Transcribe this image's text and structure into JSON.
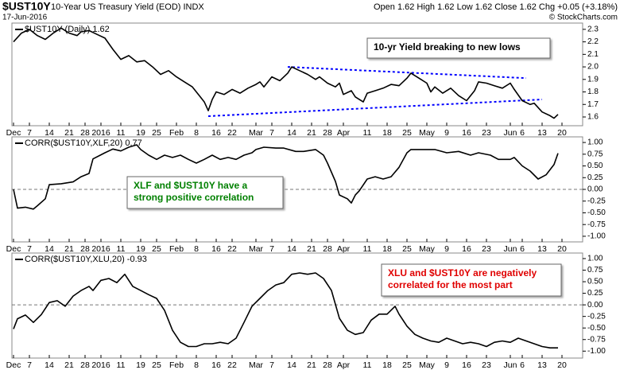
{
  "header": {
    "symbol": "$UST10Y",
    "name": "10-Year US Treasury Yield (EOD) INDX",
    "date": "17-Jun-2016",
    "quote": "Open 1.62  High 1.62  Low 1.62  Close 1.62  Chg +0.05 (+3.18%)",
    "watermark": "© StockCharts.com"
  },
  "chart_data": [
    {
      "type": "line",
      "title": "$UST10Y (Daily) 1.62",
      "color": "#000000",
      "x": [
        0,
        2,
        4,
        6,
        8,
        10,
        12,
        14,
        16,
        17,
        19,
        21,
        23,
        25,
        27,
        29,
        31,
        33,
        35,
        37,
        39,
        41,
        43,
        45,
        47,
        48,
        49,
        50,
        51,
        53,
        55,
        57,
        59,
        61,
        62,
        63,
        65,
        67,
        69,
        70,
        72,
        74,
        76,
        77,
        79,
        81,
        82,
        83,
        85,
        86,
        88,
        89,
        91,
        93,
        95,
        97,
        99,
        100,
        102,
        104,
        105,
        106,
        108,
        110,
        112,
        114,
        116,
        117,
        119,
        121,
        123,
        125,
        126,
        128,
        130,
        131,
        133,
        135,
        136,
        137
      ],
      "values": [
        2.2,
        2.27,
        2.3,
        2.25,
        2.22,
        2.27,
        2.31,
        2.27,
        2.25,
        2.28,
        2.29,
        2.26,
        2.23,
        2.14,
        2.06,
        2.09,
        2.04,
        2.05,
        2.0,
        1.94,
        1.97,
        1.92,
        1.88,
        1.84,
        1.76,
        1.72,
        1.65,
        1.74,
        1.8,
        1.78,
        1.82,
        1.79,
        1.83,
        1.86,
        1.88,
        1.84,
        1.92,
        1.89,
        1.95,
        2.0,
        1.97,
        1.94,
        1.9,
        1.92,
        1.87,
        1.84,
        1.87,
        1.78,
        1.81,
        1.76,
        1.72,
        1.79,
        1.81,
        1.83,
        1.86,
        1.85,
        1.91,
        1.95,
        1.91,
        1.87,
        1.8,
        1.84,
        1.79,
        1.83,
        1.77,
        1.73,
        1.81,
        1.88,
        1.87,
        1.85,
        1.83,
        1.87,
        1.82,
        1.73,
        1.7,
        1.71,
        1.64,
        1.61,
        1.59,
        1.62
      ],
      "xlim": [
        -0.4,
        143.2
      ],
      "ylim": [
        1.53,
        2.35
      ],
      "yticks": [
        1.6,
        1.7,
        1.8,
        1.9,
        {
          "value": 2,
          "label": "2.0"
        },
        2.1,
        2.2,
        2.3
      ],
      "xticks": [
        {
          "value": 0,
          "label": "Dec"
        },
        {
          "value": 4,
          "label": "7"
        },
        {
          "value": 9,
          "label": "14"
        },
        {
          "value": 14,
          "label": "21"
        },
        {
          "value": 18,
          "label": "28"
        },
        {
          "value": 22,
          "label": "2016"
        },
        {
          "value": 27,
          "label": "11"
        },
        {
          "value": 32,
          "label": "19"
        },
        {
          "value": 36,
          "label": "25"
        },
        {
          "value": 41,
          "label": "Feb"
        },
        {
          "value": 46,
          "label": "8"
        },
        {
          "value": 51,
          "label": "16"
        },
        {
          "value": 55,
          "label": "22"
        },
        {
          "value": 61,
          "label": "Mar"
        },
        {
          "value": 65,
          "label": "7"
        },
        {
          "value": 70,
          "label": "14"
        },
        {
          "value": 75,
          "label": "21"
        },
        {
          "value": 79,
          "label": "28"
        },
        {
          "value": 83,
          "label": "Apr"
        },
        {
          "value": 89,
          "label": "11"
        },
        {
          "value": 94,
          "label": "18"
        },
        {
          "value": 99,
          "label": "25"
        },
        {
          "value": 104,
          "label": "May"
        },
        {
          "value": 109,
          "label": "9"
        },
        {
          "value": 114,
          "label": "16"
        },
        {
          "value": 119,
          "label": "23"
        },
        {
          "value": 125,
          "label": "Jun"
        },
        {
          "value": 128,
          "label": "6"
        },
        {
          "value": 133,
          "label": "13"
        },
        {
          "value": 138,
          "label": "20"
        }
      ],
      "trendlines": [
        {
          "x": [
            69,
            129
          ],
          "values": [
            2.0,
            1.91
          ],
          "color": "#0000ff"
        },
        {
          "x": [
            49,
            133
          ],
          "values": [
            1.606,
            1.74
          ],
          "color": "#0000ff"
        }
      ],
      "annotation": {
        "lines": [
          "10-yr Yield breaking to new lows"
        ],
        "color": "#000000"
      }
    },
    {
      "type": "line",
      "title": "CORR($UST10Y,XLF,20) 0.77",
      "color": "#000000",
      "x": [
        0,
        1,
        3,
        5,
        6,
        8,
        9,
        12,
        15,
        17,
        19,
        20,
        23,
        25,
        27,
        29,
        31,
        32,
        34,
        36,
        38,
        40,
        42,
        44,
        46,
        48,
        50,
        52,
        54,
        56,
        58,
        60,
        61,
        63,
        66,
        68,
        71,
        73,
        76,
        78,
        79,
        81,
        82,
        84,
        85,
        86,
        87,
        89,
        91,
        93,
        95,
        97,
        99,
        100,
        103,
        106,
        109,
        112,
        115,
        117,
        120,
        122,
        125,
        126,
        128,
        130,
        132,
        134,
        136,
        137
      ],
      "values": [
        0.0,
        -0.4,
        -0.38,
        -0.42,
        -0.35,
        -0.2,
        0.1,
        0.12,
        0.16,
        0.27,
        0.34,
        0.65,
        0.78,
        0.86,
        0.82,
        0.9,
        0.95,
        0.85,
        0.73,
        0.64,
        0.73,
        0.68,
        0.73,
        0.64,
        0.56,
        0.64,
        0.73,
        0.64,
        0.68,
        0.64,
        0.73,
        0.78,
        0.85,
        0.9,
        0.88,
        0.88,
        0.81,
        0.81,
        0.85,
        0.73,
        0.56,
        0.17,
        -0.12,
        -0.2,
        -0.29,
        -0.12,
        -0.03,
        0.22,
        0.27,
        0.22,
        0.27,
        0.47,
        0.78,
        0.85,
        0.85,
        0.85,
        0.78,
        0.81,
        0.73,
        0.78,
        0.73,
        0.64,
        0.64,
        0.68,
        0.5,
        0.39,
        0.22,
        0.31,
        0.53,
        0.77
      ],
      "xlim": [
        -0.4,
        143.2
      ],
      "ylim": [
        -1.12,
        1.12
      ],
      "yticks": [
        {
          "value": 1,
          "label": "1.00"
        },
        0.75,
        {
          "value": 0.5,
          "label": "0.50"
        },
        0.25,
        {
          "value": 0,
          "label": "0.00"
        },
        -0.25,
        {
          "value": -0.5,
          "label": "-0.50"
        },
        -0.75,
        {
          "value": -1,
          "label": "-1.00"
        }
      ],
      "hline": 0,
      "xticks": [
        {
          "value": 0,
          "label": "Dec"
        },
        {
          "value": 4,
          "label": "7"
        },
        {
          "value": 9,
          "label": "14"
        },
        {
          "value": 14,
          "label": "21"
        },
        {
          "value": 18,
          "label": "28"
        },
        {
          "value": 22,
          "label": "2016"
        },
        {
          "value": 27,
          "label": "11"
        },
        {
          "value": 32,
          "label": "19"
        },
        {
          "value": 36,
          "label": "25"
        },
        {
          "value": 41,
          "label": "Feb"
        },
        {
          "value": 46,
          "label": "8"
        },
        {
          "value": 51,
          "label": "16"
        },
        {
          "value": 55,
          "label": "22"
        },
        {
          "value": 61,
          "label": "Mar"
        },
        {
          "value": 65,
          "label": "7"
        },
        {
          "value": 70,
          "label": "14"
        },
        {
          "value": 75,
          "label": "21"
        },
        {
          "value": 79,
          "label": "28"
        },
        {
          "value": 83,
          "label": "Apr"
        },
        {
          "value": 89,
          "label": "11"
        },
        {
          "value": 94,
          "label": "18"
        },
        {
          "value": 99,
          "label": "25"
        },
        {
          "value": 104,
          "label": "May"
        },
        {
          "value": 109,
          "label": "9"
        },
        {
          "value": 114,
          "label": "16"
        },
        {
          "value": 119,
          "label": "23"
        },
        {
          "value": 125,
          "label": "Jun"
        },
        {
          "value": 128,
          "label": "6"
        },
        {
          "value": 133,
          "label": "13"
        },
        {
          "value": 138,
          "label": "20"
        }
      ],
      "annotation": {
        "lines": [
          "XLF and $UST10Y have a",
          "strong positive correlation"
        ],
        "color": "#008000"
      }
    },
    {
      "type": "line",
      "title": "CORR($UST10Y,XLU,20) -0.93",
      "color": "#000000",
      "x": [
        0,
        1,
        3,
        5,
        7,
        9,
        11,
        13,
        15,
        17,
        19,
        20,
        22,
        24,
        26,
        28,
        30,
        32,
        34,
        36,
        38,
        40,
        42,
        44,
        46,
        48,
        50,
        52,
        54,
        56,
        58,
        60,
        62,
        64,
        66,
        68,
        70,
        72,
        74,
        76,
        78,
        80,
        82,
        84,
        86,
        88,
        90,
        92,
        94,
        96,
        97,
        99,
        101,
        103,
        105,
        107,
        109,
        111,
        113,
        115,
        117,
        119,
        121,
        123,
        125,
        127,
        129,
        131,
        133,
        135,
        137
      ],
      "values": [
        -0.52,
        -0.3,
        -0.22,
        -0.38,
        -0.21,
        0.05,
        0.09,
        -0.03,
        0.19,
        0.31,
        0.4,
        0.31,
        0.53,
        0.57,
        0.48,
        0.66,
        0.4,
        0.31,
        0.22,
        0.14,
        -0.12,
        -0.55,
        -0.81,
        -0.9,
        -0.9,
        -0.84,
        -0.84,
        -0.81,
        -0.84,
        -0.72,
        -0.38,
        -0.03,
        0.14,
        0.31,
        0.43,
        0.48,
        0.66,
        0.69,
        0.66,
        0.69,
        0.57,
        0.31,
        -0.29,
        -0.55,
        -0.64,
        -0.6,
        -0.33,
        -0.2,
        -0.2,
        -0.03,
        -0.2,
        -0.46,
        -0.64,
        -0.72,
        -0.78,
        -0.81,
        -0.72,
        -0.78,
        -0.84,
        -0.81,
        -0.84,
        -0.9,
        -0.81,
        -0.78,
        -0.81,
        -0.72,
        -0.78,
        -0.84,
        -0.9,
        -0.93,
        -0.93
      ],
      "xlim": [
        -0.4,
        143.2
      ],
      "ylim": [
        -1.15,
        1.12
      ],
      "yticks": [
        {
          "value": 1,
          "label": "1.00"
        },
        0.75,
        {
          "value": 0.5,
          "label": "0.50"
        },
        0.25,
        {
          "value": 0,
          "label": "0.00"
        },
        -0.25,
        {
          "value": -0.5,
          "label": "-0.50"
        },
        -0.75,
        {
          "value": -1,
          "label": "-1.00"
        }
      ],
      "hline": 0,
      "xticks": [
        {
          "value": 0,
          "label": "Dec"
        },
        {
          "value": 4,
          "label": "7"
        },
        {
          "value": 9,
          "label": "14"
        },
        {
          "value": 14,
          "label": "21"
        },
        {
          "value": 18,
          "label": "28"
        },
        {
          "value": 22,
          "label": "2016"
        },
        {
          "value": 27,
          "label": "11"
        },
        {
          "value": 32,
          "label": "19"
        },
        {
          "value": 36,
          "label": "25"
        },
        {
          "value": 41,
          "label": "Feb"
        },
        {
          "value": 46,
          "label": "8"
        },
        {
          "value": 51,
          "label": "16"
        },
        {
          "value": 55,
          "label": "22"
        },
        {
          "value": 61,
          "label": "Mar"
        },
        {
          "value": 65,
          "label": "7"
        },
        {
          "value": 70,
          "label": "14"
        },
        {
          "value": 75,
          "label": "21"
        },
        {
          "value": 79,
          "label": "28"
        },
        {
          "value": 83,
          "label": "Apr"
        },
        {
          "value": 89,
          "label": "11"
        },
        {
          "value": 94,
          "label": "18"
        },
        {
          "value": 99,
          "label": "25"
        },
        {
          "value": 104,
          "label": "May"
        },
        {
          "value": 109,
          "label": "9"
        },
        {
          "value": 114,
          "label": "16"
        },
        {
          "value": 119,
          "label": "23"
        },
        {
          "value": 125,
          "label": "Jun"
        },
        {
          "value": 128,
          "label": "6"
        },
        {
          "value": 133,
          "label": "13"
        },
        {
          "value": 138,
          "label": "20"
        }
      ],
      "annotation": {
        "lines": [
          "XLU and $UST10Y are negatively",
          "correlated for the most part"
        ],
        "color": "#e00000"
      }
    }
  ]
}
